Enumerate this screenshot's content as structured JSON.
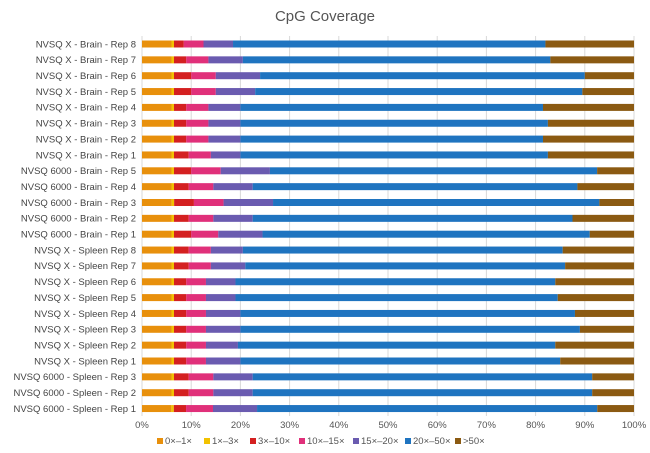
{
  "chart_data": {
    "type": "bar",
    "orientation": "horizontal",
    "stacked": "percent",
    "title": "CpG Coverage",
    "xlabel": "",
    "ylabel": "",
    "xlim": [
      0,
      100
    ],
    "x_ticks": [
      "0%",
      "10%",
      "20%",
      "30%",
      "40%",
      "50%",
      "60%",
      "70%",
      "80%",
      "90%",
      "100%"
    ],
    "grid": "vertical",
    "legend_position": "bottom",
    "categories": [
      "NVSQ X - Brain - Rep 8",
      "NVSQ X - Brain - Rep 7",
      "NVSQ X - Brain - Rep 6",
      "NVSQ X - Brain - Rep 5",
      "NVSQ X - Brain - Rep 4",
      "NVSQ X - Brain - Rep 3",
      "NVSQ X - Brain - Rep 2",
      "NVSQ X - Brain - Rep 1",
      "NVSQ 6000 - Brain - Rep 5",
      "NVSQ 6000 - Brain - Rep 4",
      "NVSQ 6000 - Brain - Rep 3",
      "NVSQ 6000 - Brain - Rep 2",
      "NVSQ 6000 - Brain - Rep 1",
      "NVSQ X - Spleen Rep 8",
      "NVSQ X - Spleen Rep 7",
      "NVSQ X - Spleen Rep 6",
      "NVSQ X - Spleen Rep 5",
      "NVSQ X - Spleen Rep 4",
      "NVSQ X - Spleen Rep 3",
      "NVSQ X - Spleen Rep 2",
      "NVSQ X - Spleen Rep 1",
      "NVSQ 6000 - Spleen - Rep 3",
      "NVSQ 6000 - Spleen - Rep 2",
      "NVSQ 6000 - Spleen - Rep 1"
    ],
    "series": [
      {
        "name": "0×–1×",
        "color": "#e8900c",
        "values": [
          6,
          6,
          6,
          6,
          6,
          6,
          6,
          6,
          6,
          6,
          6,
          6,
          6,
          6,
          6,
          6,
          6,
          6,
          6,
          6,
          6,
          6,
          6,
          6
        ]
      },
      {
        "name": "1×–3×",
        "color": "#f2c200",
        "values": [
          0.5,
          0.5,
          0.5,
          0.5,
          0.5,
          0.5,
          0.5,
          0.5,
          0.5,
          0.5,
          0.5,
          0.5,
          0.5,
          0.5,
          0.5,
          0.5,
          0.5,
          0.5,
          0.5,
          0.5,
          0.5,
          0.5,
          0.5,
          0.5
        ]
      },
      {
        "name": "3×–10×",
        "color": "#d42020",
        "values": [
          2,
          2.5,
          3.5,
          3.5,
          2.5,
          2.5,
          2.5,
          3,
          3.5,
          3,
          4,
          3,
          3.5,
          3,
          3,
          2.5,
          2.5,
          2.5,
          2.5,
          2.5,
          2.5,
          3,
          3,
          2.5
        ]
      },
      {
        "name": "10×–15×",
        "color": "#e0307a",
        "values": [
          4,
          4.5,
          5,
          5,
          4.5,
          4.5,
          4.5,
          4.5,
          6,
          5,
          6,
          5,
          5.5,
          4.5,
          4.5,
          4,
          4,
          4,
          4,
          4,
          4,
          5,
          5,
          5.5
        ]
      },
      {
        "name": "15×–20×",
        "color": "#6a5bb0",
        "values": [
          6,
          7,
          9,
          8,
          6.5,
          6.5,
          6.5,
          6,
          10,
          8,
          10,
          8,
          9,
          6.5,
          7,
          6,
          6,
          7,
          7,
          6.5,
          7,
          8,
          8,
          9
        ]
      },
      {
        "name": "20×–50×",
        "color": "#1f74c0",
        "values": [
          63.5,
          62.5,
          66,
          66.5,
          61.5,
          62.5,
          61.5,
          62.5,
          66.5,
          66,
          66,
          65,
          66.5,
          65,
          65,
          65,
          65.5,
          68,
          69,
          64.5,
          65,
          69,
          69,
          69.5
        ]
      },
      {
        "name": ">50×",
        "color": "#8b5a12",
        "values": [
          18,
          17,
          10,
          10.5,
          18.5,
          17.5,
          18.5,
          17.5,
          7.5,
          11.5,
          7,
          12.5,
          9,
          14.5,
          14,
          16,
          15.5,
          12,
          11,
          16,
          15,
          8.5,
          8.5,
          7.5
        ]
      }
    ]
  }
}
